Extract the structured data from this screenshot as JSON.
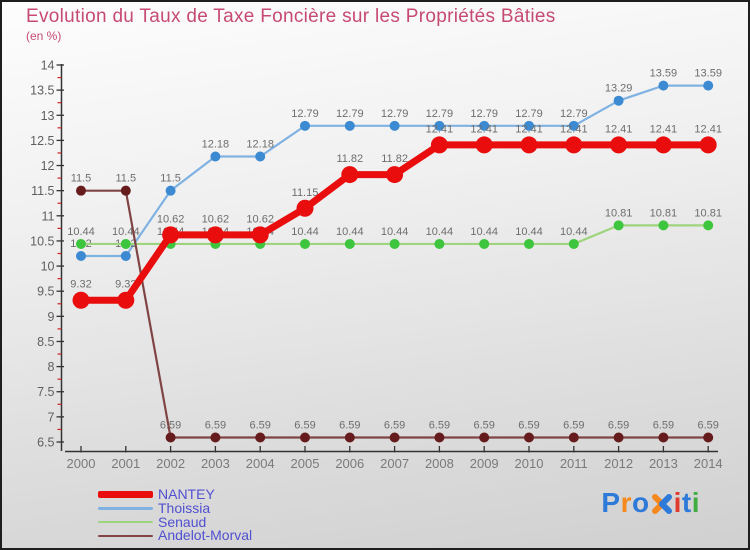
{
  "header": {
    "title": "Evolution du Taux de Taxe Foncière sur les Propriétés Bâties",
    "subtitle": "(en %)"
  },
  "colors": {
    "title": "#c64a72",
    "legend_text": "#5150d0",
    "value_label": "#6e6e6e",
    "axis": "#333333",
    "minor_tick": "#cc2222",
    "x_tick_label": "#7a7a7a",
    "y_tick_label": "#5f5f5f"
  },
  "legend": {
    "position": "bottom-left"
  },
  "logo": {
    "text": "Proxiti",
    "letters": [
      {
        "ch": "P",
        "color": "#2e7ad8"
      },
      {
        "ch": "r",
        "color": "#f5891d"
      },
      {
        "ch": "o",
        "color": "#2e7ad8"
      },
      {
        "ch": "x",
        "glyph": "x-mark",
        "color": "#f5891d",
        "color2": "#2e7ad8"
      },
      {
        "ch": "i",
        "color": "#e03a2c"
      },
      {
        "ch": "t",
        "color": "#2e7ad8"
      },
      {
        "ch": "i",
        "color": "#3fae3f"
      }
    ]
  },
  "chart_data": {
    "type": "line",
    "title": "Evolution du Taux de Taxe Foncière sur les Propriétés Bâties",
    "unit": "(en %)",
    "x": [
      "2000",
      "2001",
      "2002",
      "2003",
      "2004",
      "2005",
      "2006",
      "2007",
      "2008",
      "2009",
      "2010",
      "2011",
      "2012",
      "2013",
      "2014"
    ],
    "series": [
      {
        "name": "NANTEY",
        "line_color": "#e90d0d",
        "marker_color": "#e90d0d",
        "line_width": 7,
        "marker_radius": 8.5,
        "on_top": true,
        "values": [
          9.32,
          9.32,
          10.62,
          10.62,
          10.62,
          11.15,
          11.82,
          11.82,
          12.41,
          12.41,
          12.41,
          12.41,
          12.41,
          12.41,
          12.41
        ]
      },
      {
        "name": "Thoissia",
        "line_color": "#7fb2e2",
        "marker_color": "#3c8ad2",
        "line_width": 2.2,
        "marker_radius": 5,
        "on_top": false,
        "values": [
          10.2,
          10.2,
          11.5,
          12.18,
          12.18,
          12.79,
          12.79,
          12.79,
          12.79,
          12.79,
          12.79,
          12.79,
          13.29,
          13.59,
          13.59
        ]
      },
      {
        "name": "Senaud",
        "line_color": "#9ed47e",
        "marker_color": "#3dc53d",
        "line_width": 2.2,
        "marker_radius": 5,
        "on_top": false,
        "values": [
          10.44,
          10.44,
          10.44,
          10.44,
          10.44,
          10.44,
          10.44,
          10.44,
          10.44,
          10.44,
          10.44,
          10.44,
          10.81,
          10.81,
          10.81
        ]
      },
      {
        "name": "Andelot-Morval",
        "line_color": "#804444",
        "marker_color": "#661c1c",
        "line_width": 2.2,
        "marker_radius": 5,
        "on_top": false,
        "values": [
          11.5,
          11.5,
          6.59,
          6.59,
          6.59,
          6.59,
          6.59,
          6.59,
          6.59,
          6.59,
          6.59,
          6.59,
          6.59,
          6.59,
          6.59
        ]
      }
    ],
    "ylim": [
      6.5,
      14
    ],
    "y_major_step": 0.5,
    "y_minor_step": 0.25,
    "grid": false,
    "value_labels": true,
    "legend_position": "bottom-left"
  }
}
